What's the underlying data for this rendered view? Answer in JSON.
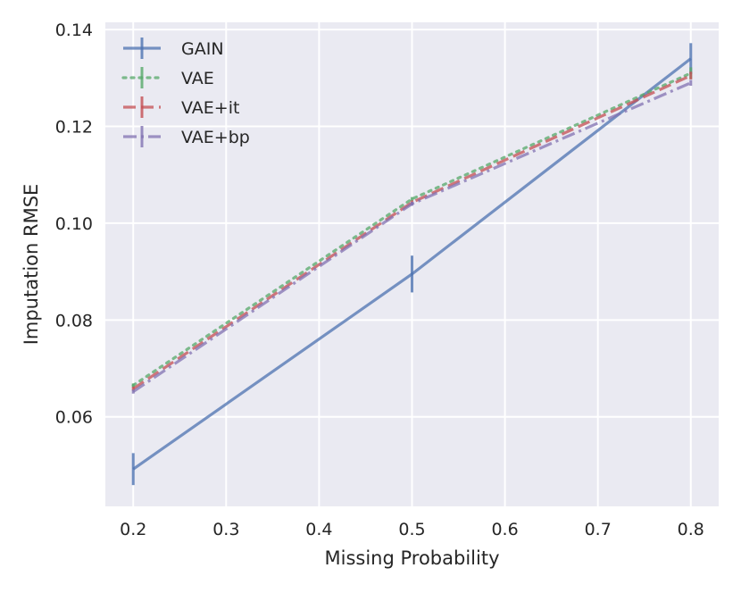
{
  "chart_data": {
    "type": "line",
    "title": "",
    "xlabel": "Missing Probability",
    "ylabel": "Imputation RMSE",
    "xlim": [
      0.17,
      0.83
    ],
    "ylim": [
      0.0415,
      0.1415
    ],
    "xticks": [
      0.2,
      0.3,
      0.4,
      0.5,
      0.6,
      0.7,
      0.8
    ],
    "yticks": [
      0.06,
      0.08,
      0.1,
      0.12,
      0.14
    ],
    "xtick_labels": [
      "0.2",
      "0.3",
      "0.4",
      "0.5",
      "0.6",
      "0.7",
      "0.8"
    ],
    "ytick_labels": [
      "0.06",
      "0.08",
      "0.10",
      "0.12",
      "0.14"
    ],
    "grid": true,
    "legend_position": "top-left",
    "x": [
      0.2,
      0.5,
      0.8
    ],
    "series": [
      {
        "name": "GAIN",
        "values": [
          0.0492,
          0.0895,
          0.134
        ],
        "errors": [
          0.0033,
          0.0038,
          0.0032
        ],
        "color": "#4c72b0",
        "dash": "solid"
      },
      {
        "name": "VAE",
        "values": [
          0.0665,
          0.105,
          0.131
        ],
        "errors": [
          0.0004,
          0.0004,
          0.0012
        ],
        "color": "#55a868",
        "dash": "dotted"
      },
      {
        "name": "VAE+it",
        "values": [
          0.0658,
          0.1043,
          0.1305
        ],
        "errors": [
          0.0004,
          0.0004,
          0.0008
        ],
        "color": "#c44e52",
        "dash": "dashed"
      },
      {
        "name": "VAE+bp",
        "values": [
          0.0652,
          0.104,
          0.129
        ],
        "errors": [
          0.0004,
          0.0004,
          0.0006
        ],
        "color": "#8172b2",
        "dash": "dashdot"
      }
    ]
  }
}
